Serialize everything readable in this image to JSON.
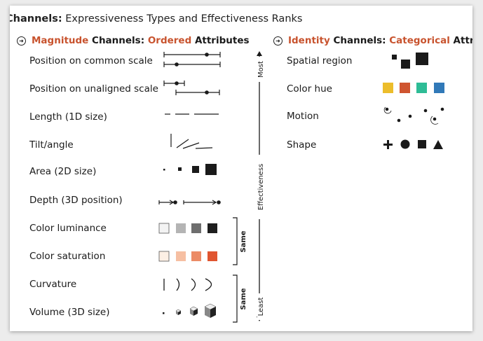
{
  "title": {
    "bold": "Channels:",
    "rest": " Expressiveness Types and Effectiveness Ranks"
  },
  "magnitude": {
    "accent1": "Magnitude",
    "mid": " Channels: ",
    "accent2": "Ordered",
    "end": " Attributes",
    "rows": [
      "Position on common scale",
      "Position on unaligned scale",
      "Length (1D size)",
      "Tilt/angle",
      "Area (2D size)",
      "Depth (3D position)",
      "Color luminance",
      "Color saturation",
      "Curvature",
      "Volume (3D size)"
    ]
  },
  "identity": {
    "accent1": "Identity",
    "mid": " Channels: ",
    "accent2": "Categorical",
    "end": " Attributes",
    "rows": [
      "Spatial region",
      "Color hue",
      "Motion",
      "Shape"
    ]
  },
  "scale": {
    "most": "Most",
    "effectiveness": "Effectiveness",
    "least": "Least",
    "same1": "Same",
    "same2": "Same"
  },
  "colors": {
    "accent": "#c8532e",
    "luminance": [
      "#f3f3f3",
      "#b4b4b4",
      "#6e6e6e",
      "#1e1e1e"
    ],
    "saturation": [
      "#fcefe4",
      "#f6bfa2",
      "#ec8b66",
      "#e05530"
    ],
    "hue": [
      "#ecbd2b",
      "#cf5530",
      "#2ebc96",
      "#3179b8"
    ]
  }
}
